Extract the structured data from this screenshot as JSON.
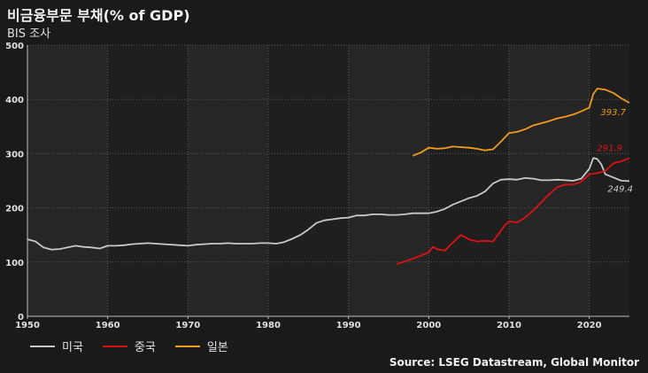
{
  "title": "비금융부문 부채(% of GDP)",
  "subtitle": "BIS 조사",
  "source": "Source: LSEG Datastream, Global Monitor",
  "colors": {
    "us": "#c8c8c8",
    "china": "#dd1111",
    "japan": "#f39a1d"
  },
  "chart_data": {
    "type": "line",
    "title": "비금융부문 부채(% of GDP)",
    "subtitle": "BIS 조사",
    "xlabel": "",
    "ylabel": "",
    "xlim": [
      1950,
      2025
    ],
    "ylim": [
      0,
      500
    ],
    "xticks": [
      1950,
      1960,
      1970,
      1980,
      1990,
      2000,
      2010,
      2020
    ],
    "yticks": [
      0,
      100,
      200,
      300,
      400,
      500
    ],
    "grid": true,
    "legend_position": "bottom-left",
    "series": [
      {
        "key": "us",
        "name": "미국",
        "end_label": "249.4",
        "points": [
          [
            1950,
            142
          ],
          [
            1951,
            138
          ],
          [
            1952,
            127
          ],
          [
            1953,
            123
          ],
          [
            1954,
            124
          ],
          [
            1955,
            127
          ],
          [
            1956,
            130
          ],
          [
            1957,
            128
          ],
          [
            1958,
            127
          ],
          [
            1959,
            125
          ],
          [
            1960,
            130
          ],
          [
            1961,
            130
          ],
          [
            1962,
            131
          ],
          [
            1963,
            133
          ],
          [
            1964,
            134
          ],
          [
            1965,
            135
          ],
          [
            1966,
            134
          ],
          [
            1967,
            133
          ],
          [
            1968,
            132
          ],
          [
            1969,
            131
          ],
          [
            1970,
            130
          ],
          [
            1971,
            132
          ],
          [
            1972,
            133
          ],
          [
            1973,
            134
          ],
          [
            1974,
            134
          ],
          [
            1975,
            135
          ],
          [
            1976,
            134
          ],
          [
            1977,
            134
          ],
          [
            1978,
            134
          ],
          [
            1979,
            135
          ],
          [
            1980,
            135
          ],
          [
            1981,
            134
          ],
          [
            1982,
            137
          ],
          [
            1983,
            143
          ],
          [
            1984,
            150
          ],
          [
            1985,
            160
          ],
          [
            1986,
            172
          ],
          [
            1987,
            177
          ],
          [
            1988,
            179
          ],
          [
            1989,
            181
          ],
          [
            1990,
            182
          ],
          [
            1991,
            186
          ],
          [
            1992,
            186
          ],
          [
            1993,
            188
          ],
          [
            1994,
            188
          ],
          [
            1995,
            187
          ],
          [
            1996,
            187
          ],
          [
            1997,
            188
          ],
          [
            1998,
            190
          ],
          [
            1999,
            190
          ],
          [
            2000,
            190
          ],
          [
            2001,
            193
          ],
          [
            2002,
            198
          ],
          [
            2003,
            206
          ],
          [
            2004,
            212
          ],
          [
            2005,
            218
          ],
          [
            2006,
            222
          ],
          [
            2007,
            230
          ],
          [
            2008,
            245
          ],
          [
            2009,
            252
          ],
          [
            2010,
            253
          ],
          [
            2011,
            252
          ],
          [
            2012,
            255
          ],
          [
            2013,
            254
          ],
          [
            2014,
            251
          ],
          [
            2015,
            251
          ],
          [
            2016,
            252
          ],
          [
            2017,
            251
          ],
          [
            2018,
            250
          ],
          [
            2019,
            254
          ],
          [
            2020,
            272
          ],
          [
            2020.5,
            292
          ],
          [
            2021,
            290
          ],
          [
            2021.5,
            280
          ],
          [
            2022,
            262
          ],
          [
            2023,
            256
          ],
          [
            2024,
            250
          ],
          [
            2025,
            249.4
          ]
        ]
      },
      {
        "key": "china",
        "name": "중국",
        "end_label": "291.9",
        "points": [
          [
            1996,
            96
          ],
          [
            1997,
            101
          ],
          [
            1998,
            106
          ],
          [
            1999,
            112
          ],
          [
            2000,
            118
          ],
          [
            2000.5,
            128
          ],
          [
            2001,
            124
          ],
          [
            2002,
            121
          ],
          [
            2003,
            136
          ],
          [
            2004,
            150
          ],
          [
            2005,
            142
          ],
          [
            2006,
            138
          ],
          [
            2007,
            139
          ],
          [
            2008,
            138
          ],
          [
            2009,
            158
          ],
          [
            2009.5,
            168
          ],
          [
            2010,
            175
          ],
          [
            2011,
            173
          ],
          [
            2012,
            182
          ],
          [
            2013,
            195
          ],
          [
            2014,
            210
          ],
          [
            2015,
            225
          ],
          [
            2016,
            238
          ],
          [
            2017,
            243
          ],
          [
            2018,
            243
          ],
          [
            2019,
            248
          ],
          [
            2020,
            262
          ],
          [
            2021,
            264
          ],
          [
            2022,
            268
          ],
          [
            2023,
            282
          ],
          [
            2024,
            286
          ],
          [
            2025,
            291.9
          ]
        ]
      },
      {
        "key": "japan",
        "name": "일본",
        "end_label": "393.7",
        "points": [
          [
            1998,
            296
          ],
          [
            1999,
            302
          ],
          [
            2000,
            311
          ],
          [
            2001,
            309
          ],
          [
            2002,
            310
          ],
          [
            2003,
            313
          ],
          [
            2004,
            312
          ],
          [
            2005,
            311
          ],
          [
            2006,
            309
          ],
          [
            2007,
            306
          ],
          [
            2008,
            308
          ],
          [
            2009,
            322
          ],
          [
            2010,
            338
          ],
          [
            2011,
            340
          ],
          [
            2012,
            345
          ],
          [
            2013,
            352
          ],
          [
            2014,
            356
          ],
          [
            2015,
            360
          ],
          [
            2016,
            365
          ],
          [
            2017,
            368
          ],
          [
            2018,
            372
          ],
          [
            2019,
            378
          ],
          [
            2020,
            385
          ],
          [
            2020.5,
            410
          ],
          [
            2021,
            420
          ],
          [
            2022,
            418
          ],
          [
            2023,
            412
          ],
          [
            2024,
            402
          ],
          [
            2025,
            393.7
          ]
        ]
      }
    ]
  }
}
